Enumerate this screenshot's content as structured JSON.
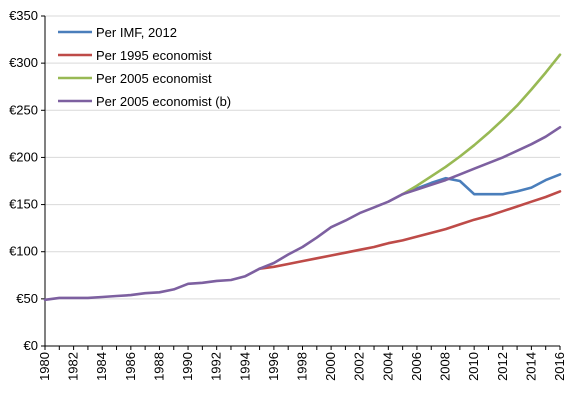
{
  "chart_data": {
    "type": "line",
    "title": "",
    "xlabel": "",
    "ylabel": "",
    "ylim": [
      0,
      350
    ],
    "xlim": [
      1980,
      2016
    ],
    "y_ticks": [
      0,
      50,
      100,
      150,
      200,
      250,
      300,
      350
    ],
    "y_tick_labels": [
      "€0",
      "€50",
      "€100",
      "€150",
      "€200",
      "€250",
      "€300",
      "€350"
    ],
    "x_ticks": [
      1980,
      1982,
      1984,
      1986,
      1988,
      1990,
      1992,
      1994,
      1996,
      1998,
      2000,
      2002,
      2004,
      2006,
      2008,
      2010,
      2012,
      2014,
      2016
    ],
    "x_tick_labels": [
      "1980",
      "1982",
      "1984",
      "1986",
      "1988",
      "1990",
      "1992",
      "1994",
      "1996",
      "1998",
      "2000",
      "2002",
      "2004",
      "2006",
      "2008",
      "2010",
      "2012",
      "2014",
      "2016"
    ],
    "grid": "horizontal",
    "legend_position": "top-left",
    "series": [
      {
        "name": "Per IMF, 2012",
        "color": "#4a7ebb",
        "x": [
          2005,
          2006,
          2007,
          2008,
          2009,
          2010,
          2011,
          2012,
          2013,
          2014,
          2015,
          2016
        ],
        "values": [
          161,
          167,
          173,
          178,
          175,
          161,
          161,
          161,
          164,
          168,
          176,
          182
        ]
      },
      {
        "name": "Per 1995 economist",
        "color": "#be4b48",
        "x": [
          1995,
          1996,
          1997,
          1998,
          1999,
          2000,
          2001,
          2002,
          2003,
          2004,
          2005,
          2006,
          2007,
          2008,
          2009,
          2010,
          2011,
          2012,
          2013,
          2014,
          2015,
          2016
        ],
        "values": [
          82,
          84,
          87,
          90,
          93,
          96,
          99,
          102,
          105,
          109,
          112,
          116,
          120,
          124,
          129,
          134,
          138,
          143,
          148,
          153,
          158,
          164
        ]
      },
      {
        "name": "Per 2005 economist",
        "color": "#98b954",
        "x": [
          2005,
          2006,
          2007,
          2008,
          2009,
          2010,
          2011,
          2012,
          2013,
          2014,
          2015,
          2016
        ],
        "values": [
          161,
          170,
          180,
          190,
          201,
          213,
          226,
          240,
          255,
          272,
          290,
          309
        ]
      },
      {
        "name": "Per 2005 economist (b)",
        "color": "#7d60a0",
        "x": [
          1980,
          1981,
          1982,
          1983,
          1984,
          1985,
          1986,
          1987,
          1988,
          1989,
          1990,
          1991,
          1992,
          1993,
          1994,
          1995,
          1996,
          1997,
          1998,
          1999,
          2000,
          2001,
          2002,
          2003,
          2004,
          2005,
          2006,
          2007,
          2008,
          2009,
          2010,
          2011,
          2012,
          2013,
          2014,
          2015,
          2016
        ],
        "values": [
          49,
          51,
          51,
          51,
          52,
          53,
          54,
          56,
          57,
          60,
          66,
          67,
          69,
          70,
          74,
          82,
          88,
          97,
          105,
          115,
          126,
          133,
          141,
          147,
          153,
          161,
          166,
          171,
          176,
          182,
          188,
          194,
          200,
          207,
          214,
          222,
          232
        ]
      }
    ]
  }
}
